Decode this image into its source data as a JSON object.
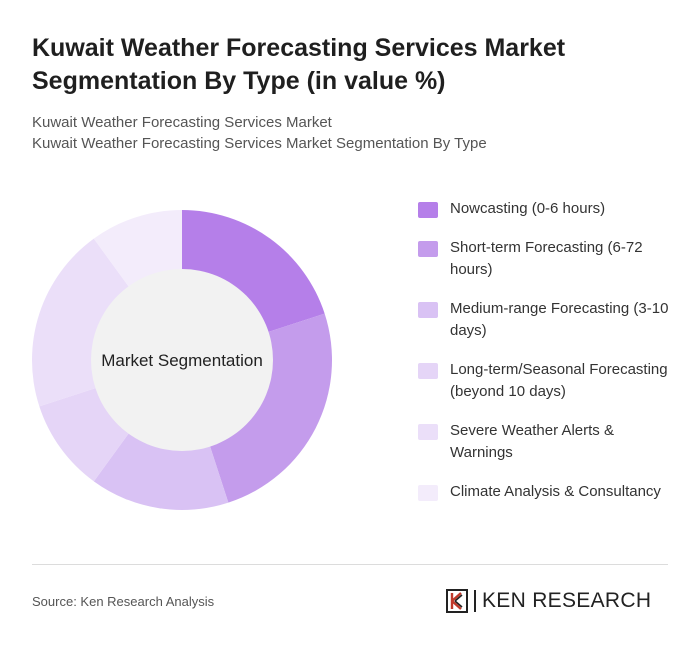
{
  "title": "Kuwait Weather Forecasting Services Market Segmentation By Type (in value %)",
  "subtitle_line1": "Kuwait Weather Forecasting Services Market",
  "subtitle_line2": "Kuwait Weather Forecasting Services Market Segmentation By Type",
  "chart_data": {
    "type": "pie",
    "center_label": "Market Segmentation",
    "categories": [
      "Nowcasting (0-6 hours)",
      "Short-term Forecasting (6-72 hours)",
      "Medium-range Forecasting (3-10 days)",
      "Long-term/Seasonal Forecasting (beyond 10 days)",
      "Severe Weather Alerts & Warnings",
      "Climate Analysis & Consultancy"
    ],
    "values": [
      20,
      25,
      15,
      10,
      20,
      10
    ],
    "colors": [
      "#b57fe9",
      "#c49cec",
      "#d9c2f4",
      "#e5d5f7",
      "#ebdff9",
      "#f3ecfb"
    ],
    "legend_position": "right"
  },
  "source": "Source: Ken Research Analysis",
  "logo": {
    "text": "KEN RESEARCH",
    "icon": "ken-k-icon"
  }
}
